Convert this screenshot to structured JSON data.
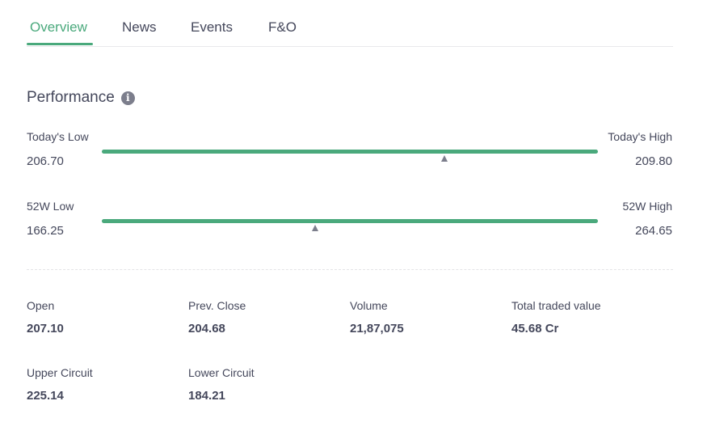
{
  "tabs": [
    {
      "label": "Overview",
      "active": true
    },
    {
      "label": "News",
      "active": false
    },
    {
      "label": "Events",
      "active": false
    },
    {
      "label": "F&O",
      "active": false
    }
  ],
  "performance": {
    "title": "Performance",
    "info_icon": "info-icon",
    "today": {
      "low_label": "Today's Low",
      "low_value": "206.70",
      "high_label": "Today's High",
      "high_value": "209.80",
      "marker_fraction": 0.69
    },
    "week52": {
      "low_label": "52W Low",
      "low_value": "166.25",
      "high_label": "52W High",
      "high_value": "264.65",
      "marker_fraction": 0.43
    }
  },
  "stats": [
    {
      "label": "Open",
      "value": "207.10"
    },
    {
      "label": "Prev. Close",
      "value": "204.68"
    },
    {
      "label": "Volume",
      "value": "21,87,075"
    },
    {
      "label": "Total traded value",
      "value": "45.68 Cr"
    },
    {
      "label": "Upper Circuit",
      "value": "225.14"
    },
    {
      "label": "Lower Circuit",
      "value": "184.21"
    }
  ],
  "colors": {
    "accent": "#4aa97c",
    "text": "#44475b",
    "marker": "#7c7e8c"
  }
}
